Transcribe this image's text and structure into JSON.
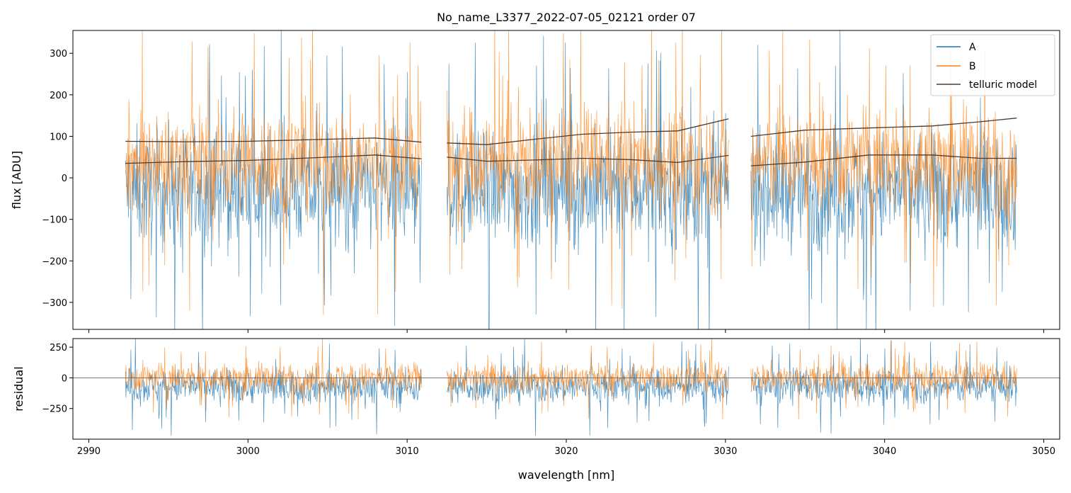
{
  "chart_data": [
    {
      "type": "line",
      "panel": "flux",
      "title": "No_name_L3377_2022-07-05_02121  order 07",
      "xlabel": "",
      "ylabel": "flux [ADU]",
      "xlim": [
        2989.0,
        3051.0
      ],
      "ylim": [
        -365,
        355
      ],
      "yticks": [
        -300,
        -200,
        -100,
        0,
        100,
        200,
        300
      ],
      "ytick_labels": [
        "−300",
        "−200",
        "−100",
        "0",
        "100",
        "200",
        "300"
      ],
      "xticks": [
        2990,
        3000,
        3010,
        3020,
        3030,
        3040,
        3050
      ],
      "grid": false,
      "legend": {
        "placement": "top-right",
        "entries": [
          "A",
          "B",
          "telluric model"
        ]
      },
      "segments": [
        [
          2992.3,
          3010.9
        ],
        [
          3012.5,
          3030.2
        ],
        [
          3031.6,
          3048.3
        ]
      ],
      "series": [
        {
          "name": "A",
          "color": "#1f77b4",
          "noise_center": -30,
          "noise_spread": 130,
          "alpha": 0.8
        },
        {
          "name": "B",
          "color": "#ff7f0e",
          "noise_center": 40,
          "noise_spread": 120,
          "alpha": 0.75
        },
        {
          "name": "telluric model",
          "color": "#4d3b30",
          "curves": [
            {
              "x": [
                2992.3,
                2996,
                3000,
                3004,
                3008,
                3010.9
              ],
              "y": [
                88,
                87,
                88,
                92,
                96,
                86
              ]
            },
            {
              "x": [
                2992.3,
                2996,
                3000,
                3004,
                3008,
                3010.9
              ],
              "y": [
                35,
                39,
                42,
                48,
                55,
                46
              ]
            },
            {
              "x": [
                3012.5,
                3015,
                3018,
                3021,
                3024,
                3027,
                3030.2
              ],
              "y": [
                84,
                80,
                93,
                105,
                110,
                113,
                142
              ]
            },
            {
              "x": [
                3012.5,
                3015,
                3018,
                3021,
                3024,
                3027,
                3030.2
              ],
              "y": [
                50,
                40,
                43,
                47,
                44,
                37,
                54
              ]
            },
            {
              "x": [
                3031.6,
                3035,
                3039,
                3043,
                3046,
                3048.3
              ],
              "y": [
                100,
                115,
                120,
                125,
                135,
                144
              ]
            },
            {
              "x": [
                3031.6,
                3035,
                3039,
                3043,
                3046,
                3048.3
              ],
              "y": [
                29,
                38,
                55,
                55,
                47,
                47
              ]
            }
          ]
        }
      ]
    },
    {
      "type": "line",
      "panel": "residual",
      "xlabel": "wavelength [nm]",
      "ylabel": "residual",
      "xlim": [
        2989.0,
        3051.0
      ],
      "ylim": [
        -500,
        320
      ],
      "yticks": [
        -250,
        0,
        250
      ],
      "ytick_labels": [
        "−250",
        "0",
        "250"
      ],
      "xticks": [
        2990,
        3000,
        3010,
        3020,
        3030,
        3040,
        3050
      ],
      "xtick_labels": [
        "2990",
        "3000",
        "3010",
        "3020",
        "3030",
        "3040",
        "3050"
      ],
      "grid": false,
      "zero_line": true,
      "segments": [
        [
          2992.3,
          3010.9
        ],
        [
          3012.5,
          3030.2
        ],
        [
          3031.6,
          3048.3
        ]
      ],
      "series": [
        {
          "name": "A",
          "color": "#1f77b4",
          "noise_center": -70,
          "noise_spread": 130,
          "alpha": 0.8
        },
        {
          "name": "B",
          "color": "#ff7f0e",
          "noise_center": 0,
          "noise_spread": 110,
          "alpha": 0.75
        }
      ]
    }
  ]
}
